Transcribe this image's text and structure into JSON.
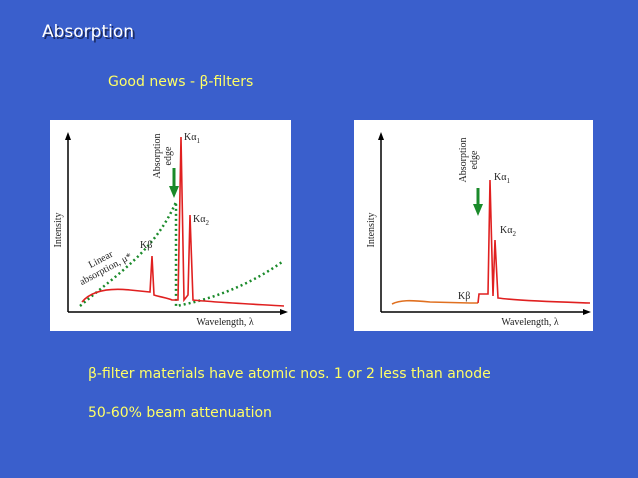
{
  "title": "Absorption",
  "subtitle": "Good news - β-filters",
  "figures": [
    {
      "edge_label": [
        "Absorption",
        "edge"
      ],
      "k_alpha1": {
        "base": "Kα",
        "sub": "1"
      },
      "k_alpha2": {
        "base": "Kα",
        "sub": "2"
      },
      "k_beta": "Kβ",
      "y_label": "Intensity",
      "x_label": "Wavelength, λ",
      "curve_label": [
        "Linear",
        "absorption, μ*"
      ]
    },
    {
      "edge_label": [
        "Absorption",
        "edge"
      ],
      "k_alpha1": {
        "base": "Kα",
        "sub": "1"
      },
      "k_alpha2": {
        "base": "Kα",
        "sub": "2"
      },
      "k_beta": "Kβ",
      "y_label": "Intensity",
      "x_label": "Wavelength, λ"
    }
  ],
  "bullets": [
    "β-filter materials have atomic nos. 1 or 2 less than anode",
    "50-60% beam attenuation"
  ]
}
